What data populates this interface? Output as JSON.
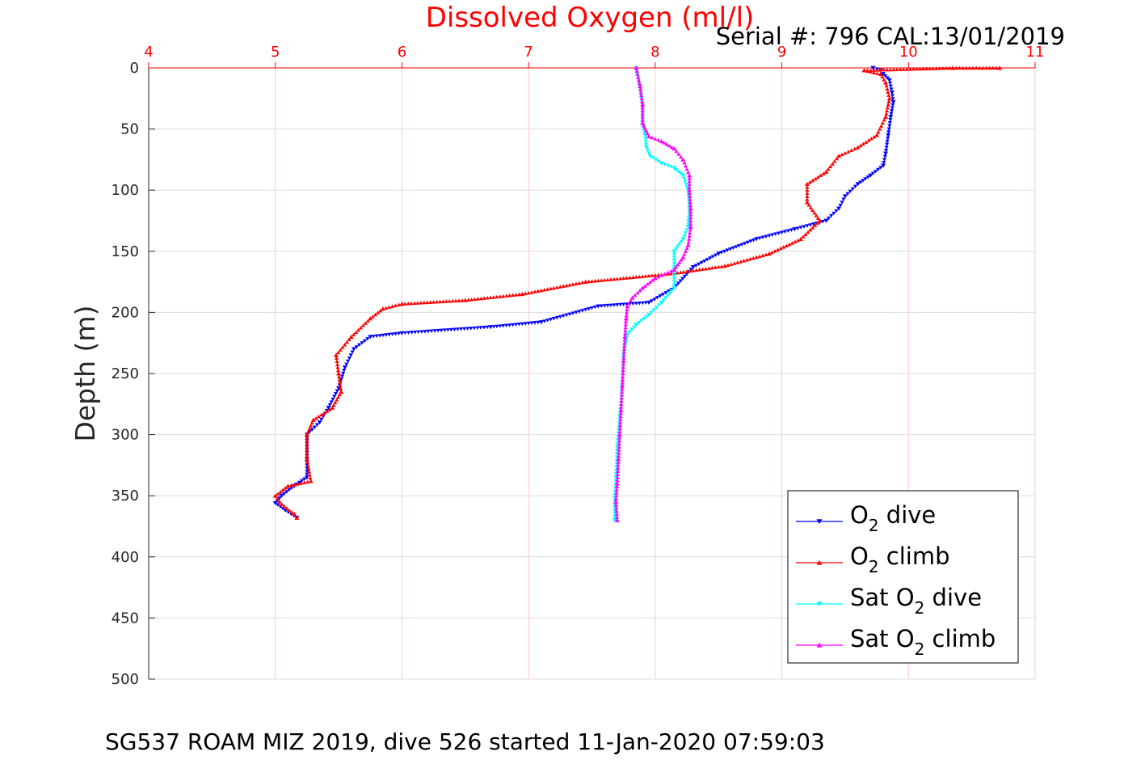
{
  "chart_data": {
    "type": "scatter",
    "title": "Dissolved Oxygen (ml/l)",
    "subtitle": "Serial #: 796  CAL:13/01/2019",
    "ylabel": "Depth (m)",
    "xlabel": "",
    "caption": "SG537 ROAM MIZ 2019, dive 526 started 11-Jan-2020 07:59:03",
    "xlim": [
      4,
      11
    ],
    "ylim": [
      0,
      500
    ],
    "y_reversed": true,
    "x_axis_position": "top",
    "x_ticks": [
      "4",
      "5",
      "6",
      "7",
      "8",
      "9",
      "10",
      "11"
    ],
    "y_ticks": [
      "0",
      "50",
      "100",
      "150",
      "200",
      "250",
      "300",
      "350",
      "400",
      "450",
      "500"
    ],
    "grid": true,
    "legend_position": "bottom-right",
    "series": [
      {
        "name": "O2 dive",
        "legend_main": "O",
        "legend_sub": "2",
        "legend_rest": " dive",
        "color": "#0000ff",
        "marker": "triangle-down",
        "points": [
          [
            9.72,
            0
          ],
          [
            9.78,
            2
          ],
          [
            9.8,
            5
          ],
          [
            9.85,
            10
          ],
          [
            9.87,
            20
          ],
          [
            9.88,
            28
          ],
          [
            9.86,
            40
          ],
          [
            9.84,
            55
          ],
          [
            9.82,
            70
          ],
          [
            9.8,
            80
          ],
          [
            9.7,
            88
          ],
          [
            9.6,
            95
          ],
          [
            9.5,
            105
          ],
          [
            9.45,
            115
          ],
          [
            9.35,
            125
          ],
          [
            9.1,
            132
          ],
          [
            8.8,
            140
          ],
          [
            8.5,
            152
          ],
          [
            8.3,
            163
          ],
          [
            8.15,
            180
          ],
          [
            7.95,
            192
          ],
          [
            7.55,
            195
          ],
          [
            7.1,
            208
          ],
          [
            6.7,
            212
          ],
          [
            6.0,
            217
          ],
          [
            5.75,
            220
          ],
          [
            5.62,
            230
          ],
          [
            5.55,
            245
          ],
          [
            5.5,
            262
          ],
          [
            5.42,
            278
          ],
          [
            5.35,
            290
          ],
          [
            5.25,
            300
          ],
          [
            5.25,
            320
          ],
          [
            5.25,
            335
          ],
          [
            5.15,
            342
          ],
          [
            5.05,
            350
          ],
          [
            5.0,
            356
          ],
          [
            5.08,
            362
          ],
          [
            5.17,
            368
          ]
        ]
      },
      {
        "name": "O2 climb",
        "legend_main": "O",
        "legend_sub": "2",
        "legend_rest": " climb",
        "color": "#ff0000",
        "marker": "triangle-up",
        "points": [
          [
            10.72,
            0
          ],
          [
            10.35,
            0
          ],
          [
            9.65,
            2
          ],
          [
            9.78,
            5
          ],
          [
            9.82,
            12
          ],
          [
            9.85,
            25
          ],
          [
            9.82,
            40
          ],
          [
            9.75,
            55
          ],
          [
            9.6,
            65
          ],
          [
            9.45,
            72
          ],
          [
            9.35,
            85
          ],
          [
            9.2,
            95
          ],
          [
            9.2,
            110
          ],
          [
            9.3,
            125
          ],
          [
            9.15,
            140
          ],
          [
            8.9,
            152
          ],
          [
            8.55,
            162
          ],
          [
            8.15,
            168
          ],
          [
            7.45,
            175
          ],
          [
            6.95,
            185
          ],
          [
            6.5,
            190
          ],
          [
            6.0,
            193
          ],
          [
            5.85,
            197
          ],
          [
            5.75,
            205
          ],
          [
            5.6,
            220
          ],
          [
            5.48,
            235
          ],
          [
            5.5,
            250
          ],
          [
            5.52,
            265
          ],
          [
            5.45,
            278
          ],
          [
            5.3,
            288
          ],
          [
            5.25,
            300
          ],
          [
            5.25,
            320
          ],
          [
            5.28,
            338
          ],
          [
            5.1,
            342
          ],
          [
            5.0,
            350
          ],
          [
            5.05,
            357
          ],
          [
            5.15,
            365
          ],
          [
            5.17,
            368
          ]
        ]
      },
      {
        "name": "Sat O2 dive",
        "legend_main": "Sat O",
        "legend_sub": "2",
        "legend_rest": " dive",
        "color": "#00ffff",
        "marker": "triangle-down",
        "points": [
          [
            7.85,
            0
          ],
          [
            7.88,
            15
          ],
          [
            7.9,
            30
          ],
          [
            7.9,
            45
          ],
          [
            7.92,
            55
          ],
          [
            7.93,
            65
          ],
          [
            7.96,
            72
          ],
          [
            8.05,
            78
          ],
          [
            8.15,
            82
          ],
          [
            8.22,
            88
          ],
          [
            8.26,
            100
          ],
          [
            8.27,
            115
          ],
          [
            8.26,
            130
          ],
          [
            8.22,
            140
          ],
          [
            8.15,
            150
          ],
          [
            8.15,
            165
          ],
          [
            8.15,
            180
          ],
          [
            8.05,
            192
          ],
          [
            7.95,
            202
          ],
          [
            7.85,
            210
          ],
          [
            7.78,
            218
          ],
          [
            7.75,
            235
          ],
          [
            7.74,
            260
          ],
          [
            7.72,
            285
          ],
          [
            7.7,
            310
          ],
          [
            7.69,
            335
          ],
          [
            7.68,
            352
          ],
          [
            7.68,
            370
          ]
        ]
      },
      {
        "name": "Sat O2 climb",
        "legend_main": "Sat O",
        "legend_sub": "2",
        "legend_rest": " climb",
        "color": "#ff00ff",
        "marker": "triangle-up",
        "points": [
          [
            7.85,
            0
          ],
          [
            7.88,
            15
          ],
          [
            7.9,
            30
          ],
          [
            7.9,
            45
          ],
          [
            7.95,
            56
          ],
          [
            8.05,
            60
          ],
          [
            8.15,
            66
          ],
          [
            8.22,
            75
          ],
          [
            8.27,
            88
          ],
          [
            8.27,
            100
          ],
          [
            8.28,
            115
          ],
          [
            8.28,
            130
          ],
          [
            8.26,
            145
          ],
          [
            8.22,
            155
          ],
          [
            8.15,
            165
          ],
          [
            8.0,
            172
          ],
          [
            7.9,
            180
          ],
          [
            7.82,
            188
          ],
          [
            7.78,
            195
          ],
          [
            7.77,
            205
          ],
          [
            7.76,
            220
          ],
          [
            7.75,
            240
          ],
          [
            7.74,
            260
          ],
          [
            7.73,
            280
          ],
          [
            7.72,
            300
          ],
          [
            7.71,
            320
          ],
          [
            7.7,
            340
          ],
          [
            7.69,
            355
          ],
          [
            7.7,
            370
          ]
        ]
      }
    ]
  }
}
